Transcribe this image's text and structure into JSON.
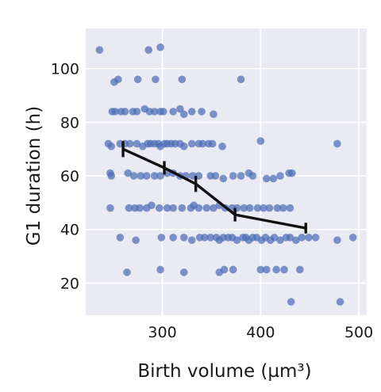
{
  "chart_data": {
    "type": "scatter",
    "title": "",
    "xlabel": "Birth volume (µm³)",
    "ylabel": "G1 duration (h)",
    "xlim": [
      222,
      508
    ],
    "ylim": [
      8,
      115
    ],
    "xticks": [
      300,
      400,
      500
    ],
    "yticks": [
      20,
      40,
      60,
      80,
      100
    ],
    "xtick_labels": [
      "300",
      "400",
      "500"
    ],
    "ytick_labels": [
      "20",
      "40",
      "60",
      "80",
      "100"
    ],
    "grid": true,
    "background": "#eaeaf2",
    "grid_color": "#ffffff",
    "point_color": "#4c6db5",
    "line_color": "#111111",
    "points": [
      [
        236,
        107
      ],
      [
        286,
        107
      ],
      [
        298,
        108
      ],
      [
        255,
        96
      ],
      [
        251,
        95
      ],
      [
        275,
        96
      ],
      [
        293,
        96
      ],
      [
        320,
        96
      ],
      [
        380,
        96
      ],
      [
        249,
        84
      ],
      [
        252,
        84
      ],
      [
        258,
        84
      ],
      [
        262,
        84
      ],
      [
        270,
        84
      ],
      [
        274,
        84
      ],
      [
        282,
        85
      ],
      [
        287,
        84
      ],
      [
        292,
        84
      ],
      [
        298,
        84
      ],
      [
        301,
        84
      ],
      [
        311,
        84
      ],
      [
        318,
        85
      ],
      [
        322,
        83
      ],
      [
        330,
        84
      ],
      [
        340,
        84
      ],
      [
        352,
        83
      ],
      [
        245,
        72
      ],
      [
        248,
        71
      ],
      [
        257,
        72
      ],
      [
        262,
        72
      ],
      [
        267,
        72
      ],
      [
        274,
        72
      ],
      [
        280,
        71
      ],
      [
        285,
        72
      ],
      [
        288,
        72
      ],
      [
        292,
        72
      ],
      [
        296,
        72
      ],
      [
        298,
        71
      ],
      [
        302,
        72
      ],
      [
        305,
        72
      ],
      [
        309,
        72
      ],
      [
        313,
        72
      ],
      [
        318,
        72
      ],
      [
        322,
        71
      ],
      [
        330,
        72
      ],
      [
        337,
        72
      ],
      [
        341,
        72
      ],
      [
        347,
        72
      ],
      [
        351,
        72
      ],
      [
        361,
        71
      ],
      [
        400,
        73
      ],
      [
        478,
        72
      ],
      [
        247,
        61
      ],
      [
        248,
        60
      ],
      [
        265,
        61
      ],
      [
        271,
        60
      ],
      [
        278,
        60
      ],
      [
        284,
        60
      ],
      [
        292,
        60
      ],
      [
        298,
        60
      ],
      [
        305,
        61
      ],
      [
        311,
        61
      ],
      [
        318,
        60
      ],
      [
        324,
        60
      ],
      [
        331,
        60
      ],
      [
        337,
        60
      ],
      [
        349,
        60
      ],
      [
        354,
        60
      ],
      [
        362,
        59
      ],
      [
        372,
        60
      ],
      [
        380,
        60
      ],
      [
        388,
        61
      ],
      [
        392,
        60
      ],
      [
        406,
        59
      ],
      [
        413,
        59
      ],
      [
        420,
        60
      ],
      [
        429,
        61
      ],
      [
        432,
        61
      ],
      [
        247,
        48
      ],
      [
        266,
        48
      ],
      [
        272,
        48
      ],
      [
        277,
        48
      ],
      [
        284,
        48
      ],
      [
        289,
        49
      ],
      [
        297,
        48
      ],
      [
        305,
        48
      ],
      [
        311,
        48
      ],
      [
        320,
        48
      ],
      [
        329,
        48
      ],
      [
        332,
        49
      ],
      [
        337,
        48
      ],
      [
        345,
        48
      ],
      [
        352,
        48
      ],
      [
        358,
        49
      ],
      [
        364,
        48
      ],
      [
        371,
        48
      ],
      [
        376,
        48
      ],
      [
        383,
        48
      ],
      [
        389,
        48
      ],
      [
        397,
        48
      ],
      [
        403,
        48
      ],
      [
        409,
        48
      ],
      [
        417,
        48
      ],
      [
        423,
        48
      ],
      [
        430,
        48
      ],
      [
        257,
        37
      ],
      [
        273,
        36
      ],
      [
        299,
        37
      ],
      [
        311,
        37
      ],
      [
        322,
        37
      ],
      [
        330,
        36
      ],
      [
        338,
        37
      ],
      [
        343,
        37
      ],
      [
        349,
        37
      ],
      [
        355,
        37
      ],
      [
        358,
        36
      ],
      [
        362,
        37
      ],
      [
        367,
        37
      ],
      [
        371,
        37
      ],
      [
        376,
        36
      ],
      [
        382,
        37
      ],
      [
        385,
        37
      ],
      [
        388,
        36
      ],
      [
        392,
        37
      ],
      [
        396,
        37
      ],
      [
        401,
        36
      ],
      [
        405,
        37
      ],
      [
        410,
        36
      ],
      [
        414,
        37
      ],
      [
        420,
        36
      ],
      [
        426,
        37
      ],
      [
        430,
        37
      ],
      [
        436,
        36
      ],
      [
        442,
        37
      ],
      [
        449,
        37
      ],
      [
        456,
        37
      ],
      [
        478,
        36
      ],
      [
        494,
        37
      ],
      [
        264,
        24
      ],
      [
        298,
        25
      ],
      [
        322,
        24
      ],
      [
        358,
        24
      ],
      [
        363,
        25
      ],
      [
        372,
        25
      ],
      [
        400,
        25
      ],
      [
        406,
        25
      ],
      [
        416,
        25
      ],
      [
        424,
        25
      ],
      [
        440,
        25
      ],
      [
        431,
        13
      ],
      [
        481,
        13
      ]
    ],
    "mean_line": {
      "x": [
        260,
        302,
        334,
        374,
        446
      ],
      "y": [
        70,
        63,
        57,
        45.5,
        40.5
      ],
      "error": [
        3,
        2.5,
        3,
        2.5,
        2
      ]
    }
  }
}
